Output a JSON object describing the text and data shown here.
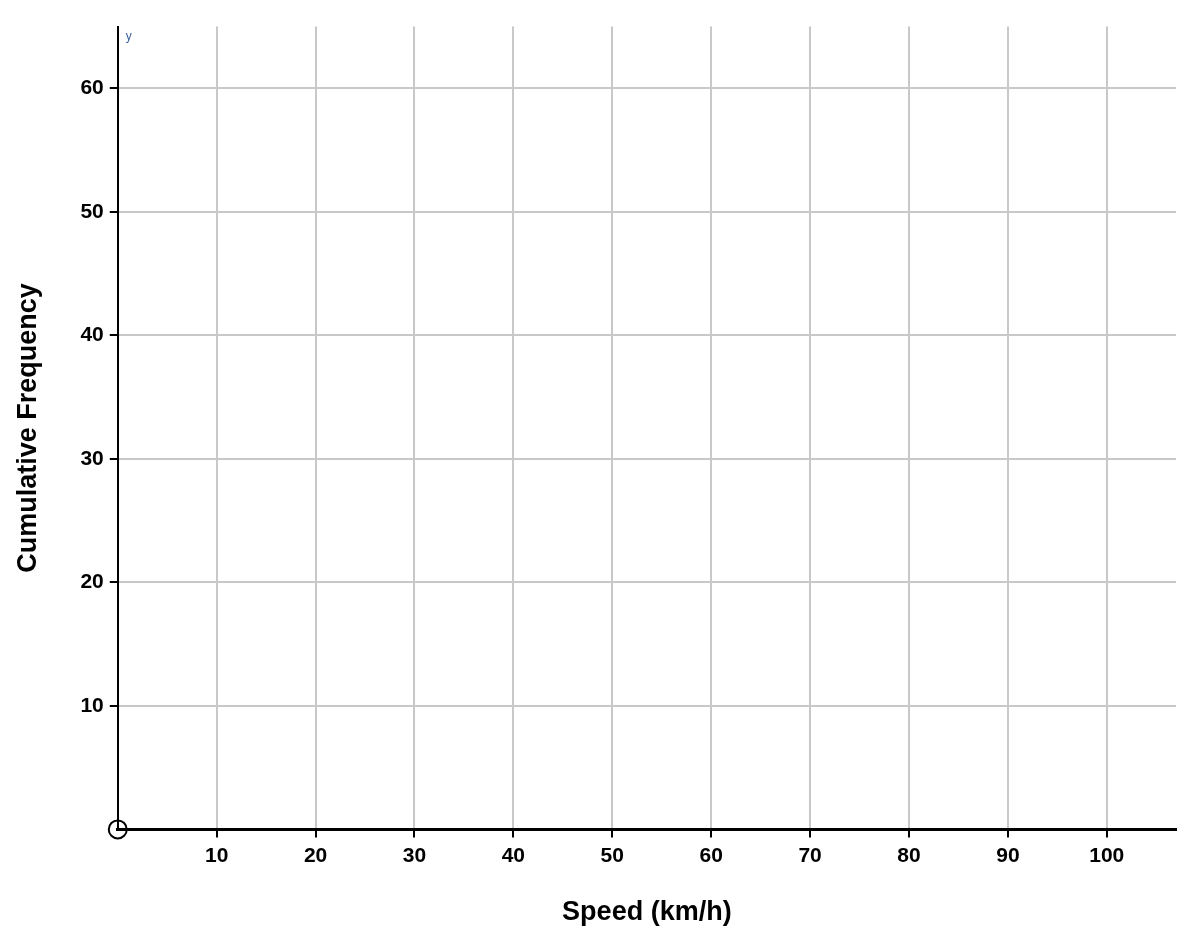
{
  "chart_data": {
    "type": "scatter",
    "xlabel": "Speed (km/h)",
    "ylabel": "Cumulative Frequency",
    "annotations": [
      "y"
    ],
    "x": [
      0
    ],
    "series": [
      {
        "color": "#000000",
        "values": [
          0
        ]
      }
    ],
    "xlim": [
      0,
      107
    ],
    "xticks": [
      10,
      20,
      30,
      40,
      50,
      60,
      70,
      80,
      90,
      100
    ],
    "ylim": [
      0,
      65
    ],
    "yticks": [
      10,
      20,
      30,
      40,
      50,
      60
    ],
    "grid": true,
    "legend": false,
    "marker": "circle"
  }
}
